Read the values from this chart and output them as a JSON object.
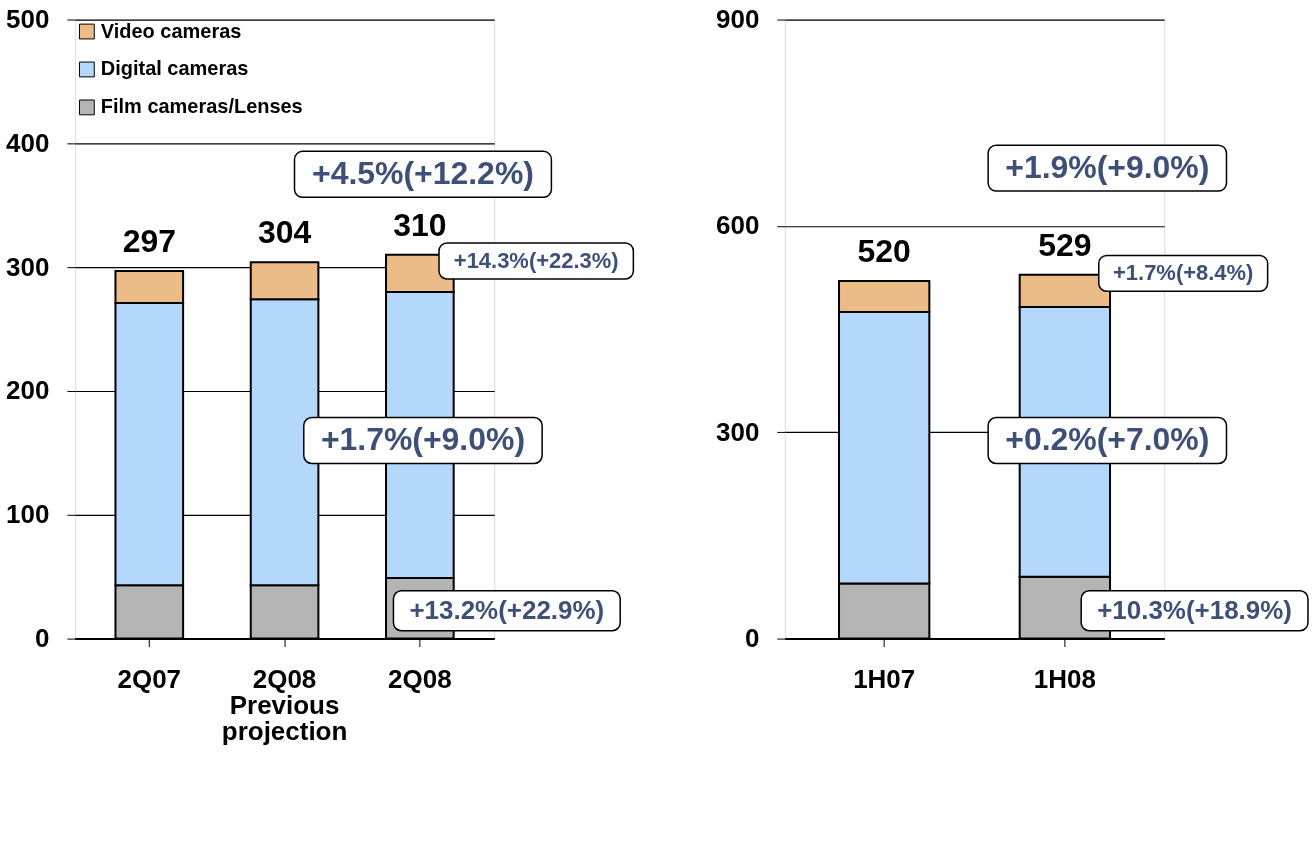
{
  "chart_data": [
    {
      "type": "bar",
      "stacked": true,
      "categories": [
        "2Q07",
        "2Q08\nPrevious\nprojection",
        "2Q08"
      ],
      "ylim": [
        0,
        500
      ],
      "yticks": [
        0,
        100,
        200,
        300,
        400,
        500
      ],
      "grid": "y",
      "legend": "top left",
      "series": [
        {
          "name": "Film cameras/Lenses",
          "color": "#b4b4b4",
          "values": [
            43,
            43,
            49
          ]
        },
        {
          "name": "Digital cameras",
          "color": "#b4d8fc",
          "values": [
            228,
            231,
            231
          ]
        },
        {
          "name": "Video cameras",
          "color": "#ecbc88",
          "values": [
            26,
            30,
            30
          ]
        }
      ],
      "totals": [
        "297",
        "304",
        "310"
      ],
      "annotations": [
        "+4.5%(+12.2%)",
        "+14.3%(+22.3%)",
        "+1.7%(+9.0%)",
        "+13.2%(+22.9%)"
      ]
    },
    {
      "type": "bar",
      "stacked": true,
      "categories": [
        "1H07",
        "1H08"
      ],
      "ylim": [
        0,
        900
      ],
      "yticks": [
        0,
        300,
        600,
        900
      ],
      "grid": "y",
      "series": [
        {
          "color": "#b4b4b4",
          "values": [
            80,
            90
          ]
        },
        {
          "color": "#b4d8fc",
          "values": [
            395,
            392
          ]
        },
        {
          "color": "#ecbc88",
          "values": [
            45,
            47
          ]
        }
      ],
      "totals": [
        "520",
        "529"
      ],
      "annotations": [
        "+1.9%(+9.0%)",
        "+1.7%(+8.4%)",
        "+0.2%(+7.0%)",
        "+10.3%(+18.9%)"
      ]
    }
  ]
}
